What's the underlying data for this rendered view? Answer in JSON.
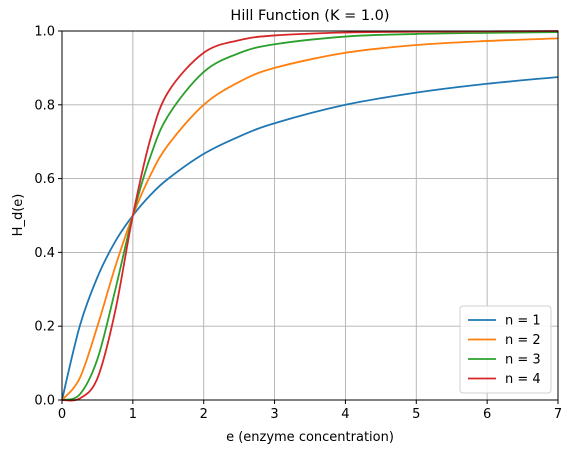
{
  "chart_data": {
    "type": "line",
    "title": "Hill Function (K = 1.0)",
    "xlabel": "e (enzyme concentration)",
    "ylabel": "H_d(e)",
    "xlim": [
      0,
      7
    ],
    "ylim": [
      0,
      1
    ],
    "xticks": [
      0,
      1,
      2,
      3,
      4,
      5,
      6,
      7
    ],
    "xtick_labels": [
      "0",
      "1",
      "2",
      "3",
      "4",
      "5",
      "6",
      "7"
    ],
    "yticks": [
      0,
      0.2,
      0.4,
      0.6,
      0.8,
      1.0
    ],
    "ytick_labels": [
      "0.0",
      "0.2",
      "0.4",
      "0.6",
      "0.8",
      "1.0"
    ],
    "grid": true,
    "legend_position": "lower-right",
    "x": [
      0,
      0.25,
      0.5,
      0.75,
      1,
      1.25,
      1.5,
      2,
      2.5,
      3,
      4,
      5,
      6,
      7
    ],
    "series": [
      {
        "name": "n = 1",
        "color": "#1f77b4",
        "values": [
          0,
          0.2,
          0.333,
          0.429,
          0.5,
          0.556,
          0.6,
          0.667,
          0.714,
          0.75,
          0.8,
          0.833,
          0.857,
          0.875
        ]
      },
      {
        "name": "n = 2",
        "color": "#ff7f0e",
        "values": [
          0,
          0.059,
          0.2,
          0.36,
          0.5,
          0.61,
          0.692,
          0.8,
          0.862,
          0.9,
          0.941,
          0.962,
          0.973,
          0.98
        ]
      },
      {
        "name": "n = 3",
        "color": "#2ca02c",
        "values": [
          0,
          0.015,
          0.111,
          0.297,
          0.5,
          0.661,
          0.771,
          0.889,
          0.94,
          0.964,
          0.985,
          0.992,
          0.995,
          0.997
        ]
      },
      {
        "name": "n = 4",
        "color": "#d62728",
        "values": [
          0,
          0.004,
          0.059,
          0.24,
          0.5,
          0.709,
          0.835,
          0.941,
          0.975,
          0.988,
          0.996,
          0.998,
          0.999,
          1.0
        ]
      }
    ]
  }
}
